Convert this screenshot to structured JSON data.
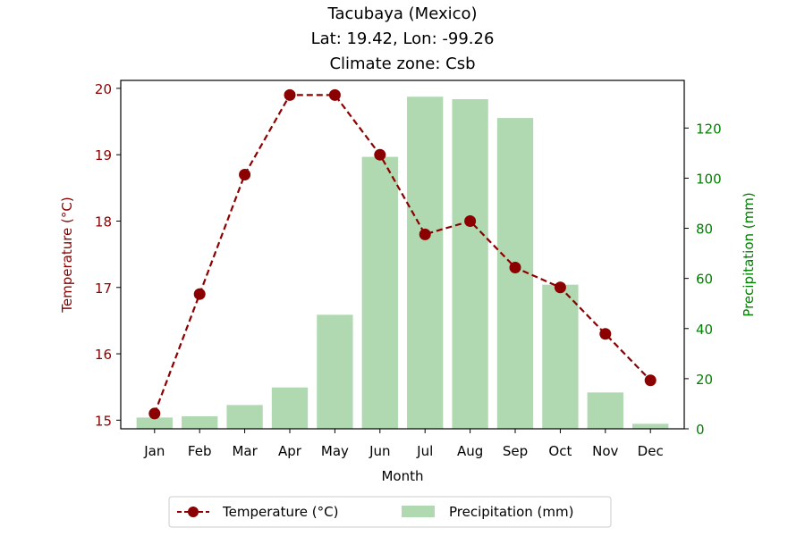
{
  "chart_data": {
    "type": "bar+line",
    "title_lines": [
      "Tacubaya (Mexico)",
      "Lat: 19.42, Lon: -99.26",
      "Climate zone: Csb"
    ],
    "xlabel": "Month",
    "ylabel_left": "Temperature (°C)",
    "ylabel_right": "Precipitation (mm)",
    "categories": [
      "Jan",
      "Feb",
      "Mar",
      "Apr",
      "May",
      "Jun",
      "Jul",
      "Aug",
      "Sep",
      "Oct",
      "Nov",
      "Dec"
    ],
    "temperature": {
      "name": "Temperature (°C)",
      "values": [
        15.1,
        16.9,
        18.7,
        19.9,
        19.9,
        19.0,
        17.8,
        18.0,
        17.3,
        17.0,
        16.3,
        15.6
      ],
      "ylim": [
        14.87,
        20.12
      ],
      "ticks": [
        15,
        16,
        17,
        18,
        19,
        20
      ],
      "color": "#8b0000"
    },
    "precipitation": {
      "name": "Precipitation (mm)",
      "values": [
        4.5,
        5.0,
        9.5,
        16.5,
        45.5,
        108.5,
        132.5,
        131.5,
        124.0,
        57.5,
        14.5,
        2.0
      ],
      "ylim": [
        0,
        139
      ],
      "ticks": [
        0,
        20,
        40,
        60,
        80,
        100,
        120
      ],
      "color": "#a8d5a8"
    },
    "legend_position": "bottom-center",
    "grid": false
  }
}
